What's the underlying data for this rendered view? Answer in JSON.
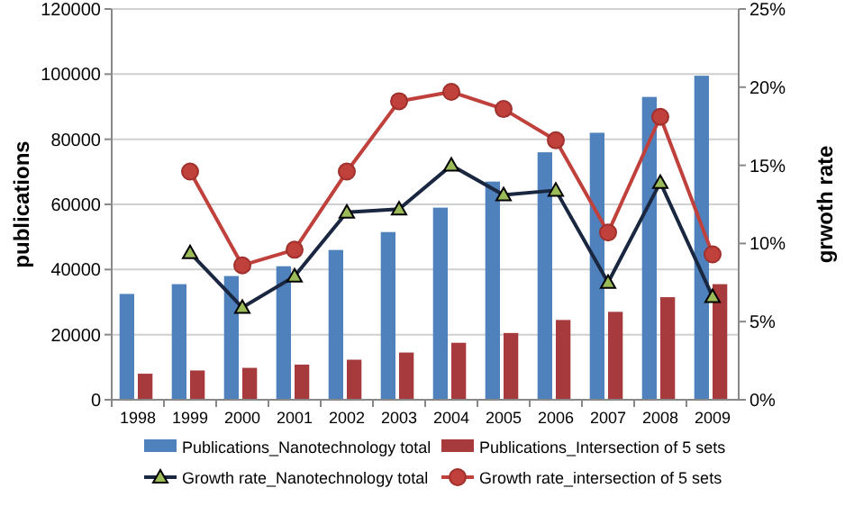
{
  "chart_data": {
    "type": "bar",
    "ylabel": "publications",
    "y2label": "grwoth rate",
    "categories": [
      "1998",
      "1999",
      "2000",
      "2001",
      "2002",
      "2003",
      "2004",
      "2005",
      "2006",
      "2007",
      "2008",
      "2009"
    ],
    "series": [
      {
        "name": "Publications_Nanotechnology total",
        "color": "#4f81bd",
        "values": [
          32500,
          35500,
          38000,
          41000,
          46000,
          51500,
          59000,
          67000,
          76000,
          82000,
          93000,
          99500
        ]
      },
      {
        "name": "Publications_Intersection of 5 sets",
        "color": "#a73a3c",
        "values": [
          8000,
          9000,
          9800,
          10800,
          12300,
          14500,
          17500,
          20500,
          24500,
          27000,
          31500,
          35500
        ]
      },
      {
        "name": "Growth rate_Nanotechnology total",
        "type": "line",
        "axis": "y2",
        "marker": "triangle",
        "color": "#1a2740",
        "values": [
          null,
          9.4,
          5.9,
          7.9,
          12.0,
          12.2,
          15.0,
          13.1,
          13.4,
          7.5,
          13.9,
          6.6
        ]
      },
      {
        "name": "Growth rate_intersection of 5 sets",
        "type": "line",
        "axis": "y2",
        "marker": "circle",
        "color": "#c0403c",
        "values": [
          null,
          14.6,
          8.6,
          9.6,
          14.6,
          19.1,
          19.7,
          18.6,
          16.6,
          10.7,
          18.1,
          9.3
        ]
      }
    ],
    "ylim": [
      0,
      120000
    ],
    "yticks": [
      0,
      20000,
      40000,
      60000,
      80000,
      100000,
      120000
    ],
    "y2lim": [
      0,
      25
    ],
    "y2ticks": [
      {
        "value": 0,
        "label": "0%"
      },
      {
        "value": 5,
        "label": "5%"
      },
      {
        "value": 10,
        "label": "10%"
      },
      {
        "value": 15,
        "label": "15%"
      },
      {
        "value": 20,
        "label": "20%"
      },
      {
        "value": 25,
        "label": "25%"
      }
    ],
    "grid": "y",
    "legend": "bottom"
  }
}
